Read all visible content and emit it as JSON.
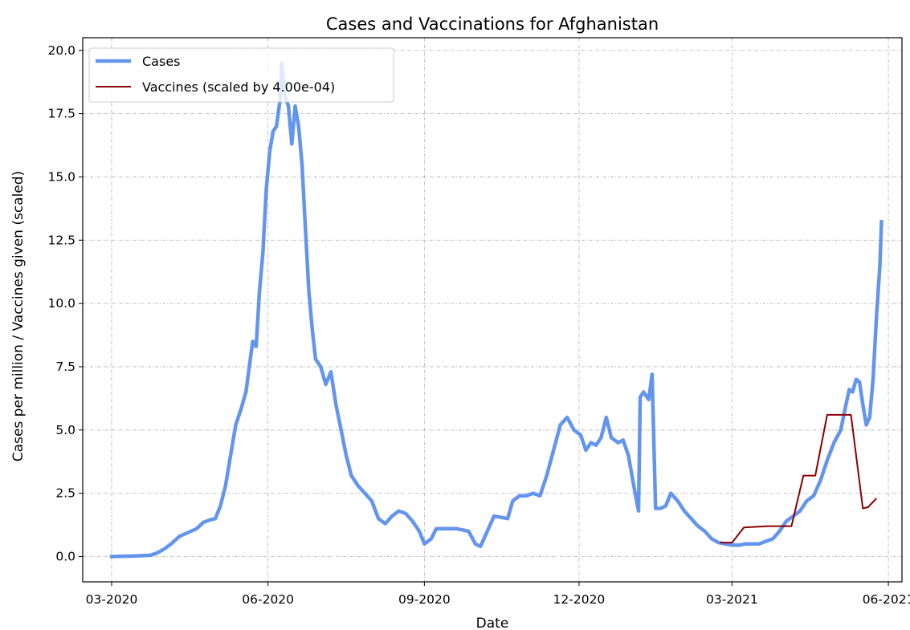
{
  "chart_data": {
    "type": "line",
    "title": "Cases and Vaccinations for Afghanistan",
    "xlabel": "Date",
    "ylabel": "Cases per million / Vaccines given (scaled)",
    "x_axis": "date",
    "xlim": [
      "2020-02-13",
      "2021-06-09"
    ],
    "ylim": [
      -1.0,
      20.5
    ],
    "x_ticks": [
      "2020-03-01",
      "2020-06-01",
      "2020-09-01",
      "2020-12-01",
      "2021-03-01",
      "2021-06-01"
    ],
    "x_tick_labels": [
      "03-2020",
      "06-2020",
      "09-2020",
      "12-2020",
      "03-2021",
      "06-2021"
    ],
    "y_ticks": [
      0.0,
      2.5,
      5.0,
      7.5,
      10.0,
      12.5,
      15.0,
      17.5,
      20.0
    ],
    "y_tick_labels": [
      "0.0",
      "2.5",
      "5.0",
      "7.5",
      "10.0",
      "12.5",
      "15.0",
      "17.5",
      "20.0"
    ],
    "grid": true,
    "legend_position": "top-left",
    "series": [
      {
        "name": "Cases",
        "color": "#6495ed",
        "points": [
          [
            "2020-02-29",
            0.0
          ],
          [
            "2020-03-15",
            0.02
          ],
          [
            "2020-03-24",
            0.05
          ],
          [
            "2020-03-28",
            0.15
          ],
          [
            "2020-04-01",
            0.3
          ],
          [
            "2020-04-05",
            0.5
          ],
          [
            "2020-04-10",
            0.8
          ],
          [
            "2020-04-15",
            0.95
          ],
          [
            "2020-04-20",
            1.1
          ],
          [
            "2020-04-24",
            1.35
          ],
          [
            "2020-04-28",
            1.45
          ],
          [
            "2020-05-01",
            1.5
          ],
          [
            "2020-05-04",
            2.0
          ],
          [
            "2020-05-07",
            2.8
          ],
          [
            "2020-05-10",
            4.0
          ],
          [
            "2020-05-13",
            5.2
          ],
          [
            "2020-05-16",
            5.8
          ],
          [
            "2020-05-19",
            6.5
          ],
          [
            "2020-05-21",
            7.5
          ],
          [
            "2020-05-23",
            8.5
          ],
          [
            "2020-05-25",
            8.3
          ],
          [
            "2020-05-27",
            10.5
          ],
          [
            "2020-05-29",
            12.0
          ],
          [
            "2020-05-31",
            14.5
          ],
          [
            "2020-06-02",
            16.0
          ],
          [
            "2020-06-04",
            16.8
          ],
          [
            "2020-06-06",
            17.0
          ],
          [
            "2020-06-08",
            18.0
          ],
          [
            "2020-06-09",
            19.5
          ],
          [
            "2020-06-11",
            18.2
          ],
          [
            "2020-06-13",
            17.8
          ],
          [
            "2020-06-15",
            16.3
          ],
          [
            "2020-06-17",
            17.8
          ],
          [
            "2020-06-19",
            17.0
          ],
          [
            "2020-06-21",
            15.5
          ],
          [
            "2020-06-23",
            13.0
          ],
          [
            "2020-06-25",
            10.5
          ],
          [
            "2020-06-27",
            9.0
          ],
          [
            "2020-06-29",
            7.8
          ],
          [
            "2020-07-02",
            7.5
          ],
          [
            "2020-07-05",
            6.8
          ],
          [
            "2020-07-08",
            7.3
          ],
          [
            "2020-07-11",
            6.0
          ],
          [
            "2020-07-14",
            5.0
          ],
          [
            "2020-07-17",
            4.0
          ],
          [
            "2020-07-20",
            3.2
          ],
          [
            "2020-07-24",
            2.8
          ],
          [
            "2020-07-28",
            2.5
          ],
          [
            "2020-08-01",
            2.2
          ],
          [
            "2020-08-05",
            1.5
          ],
          [
            "2020-08-09",
            1.3
          ],
          [
            "2020-08-13",
            1.6
          ],
          [
            "2020-08-17",
            1.8
          ],
          [
            "2020-08-21",
            1.7
          ],
          [
            "2020-08-25",
            1.4
          ],
          [
            "2020-08-29",
            1.0
          ],
          [
            "2020-09-01",
            0.5
          ],
          [
            "2020-09-05",
            0.7
          ],
          [
            "2020-09-08",
            1.1
          ],
          [
            "2020-09-13",
            1.1
          ],
          [
            "2020-09-20",
            1.1
          ],
          [
            "2020-09-27",
            1.0
          ],
          [
            "2020-10-01",
            0.5
          ],
          [
            "2020-10-04",
            0.4
          ],
          [
            "2020-10-08",
            1.0
          ],
          [
            "2020-10-12",
            1.6
          ],
          [
            "2020-10-16",
            1.55
          ],
          [
            "2020-10-20",
            1.5
          ],
          [
            "2020-10-23",
            2.2
          ],
          [
            "2020-10-27",
            2.4
          ],
          [
            "2020-10-31",
            2.4
          ],
          [
            "2020-11-04",
            2.5
          ],
          [
            "2020-11-08",
            2.4
          ],
          [
            "2020-11-12",
            3.2
          ],
          [
            "2020-11-16",
            4.2
          ],
          [
            "2020-11-20",
            5.2
          ],
          [
            "2020-11-24",
            5.5
          ],
          [
            "2020-11-28",
            5.0
          ],
          [
            "2020-12-02",
            4.8
          ],
          [
            "2020-12-05",
            4.2
          ],
          [
            "2020-12-08",
            4.5
          ],
          [
            "2020-12-11",
            4.4
          ],
          [
            "2020-12-14",
            4.7
          ],
          [
            "2020-12-17",
            5.5
          ],
          [
            "2020-12-20",
            4.7
          ],
          [
            "2020-12-24",
            4.5
          ],
          [
            "2020-12-27",
            4.6
          ],
          [
            "2020-12-30",
            4.0
          ],
          [
            "2021-01-03",
            2.5
          ],
          [
            "2021-01-05",
            1.8
          ],
          [
            "2021-01-06",
            6.3
          ],
          [
            "2021-01-08",
            6.5
          ],
          [
            "2021-01-11",
            6.2
          ],
          [
            "2021-01-13",
            7.2
          ],
          [
            "2021-01-15",
            1.9
          ],
          [
            "2021-01-18",
            1.9
          ],
          [
            "2021-01-21",
            2.0
          ],
          [
            "2021-01-24",
            2.5
          ],
          [
            "2021-01-28",
            2.2
          ],
          [
            "2021-02-01",
            1.8
          ],
          [
            "2021-02-05",
            1.5
          ],
          [
            "2021-02-09",
            1.2
          ],
          [
            "2021-02-13",
            1.0
          ],
          [
            "2021-02-17",
            0.7
          ],
          [
            "2021-02-21",
            0.55
          ],
          [
            "2021-02-25",
            0.5
          ],
          [
            "2021-03-01",
            0.45
          ],
          [
            "2021-03-05",
            0.45
          ],
          [
            "2021-03-09",
            0.5
          ],
          [
            "2021-03-13",
            0.5
          ],
          [
            "2021-03-17",
            0.5
          ],
          [
            "2021-03-21",
            0.6
          ],
          [
            "2021-03-25",
            0.7
          ],
          [
            "2021-03-29",
            1.0
          ],
          [
            "2021-04-02",
            1.4
          ],
          [
            "2021-04-06",
            1.6
          ],
          [
            "2021-04-10",
            1.8
          ],
          [
            "2021-04-14",
            2.2
          ],
          [
            "2021-04-18",
            2.4
          ],
          [
            "2021-04-22",
            3.0
          ],
          [
            "2021-04-26",
            3.8
          ],
          [
            "2021-04-30",
            4.5
          ],
          [
            "2021-05-04",
            5.0
          ],
          [
            "2021-05-07",
            6.0
          ],
          [
            "2021-05-09",
            6.6
          ],
          [
            "2021-05-11",
            6.5
          ],
          [
            "2021-05-13",
            7.0
          ],
          [
            "2021-05-15",
            6.9
          ],
          [
            "2021-05-17",
            6.0
          ],
          [
            "2021-05-19",
            5.2
          ],
          [
            "2021-05-21",
            5.5
          ],
          [
            "2021-05-23",
            7.0
          ],
          [
            "2021-05-25",
            9.5
          ],
          [
            "2021-05-27",
            11.5
          ],
          [
            "2021-05-28",
            13.3
          ]
        ]
      },
      {
        "name": "Vaccines (scaled by 4.00e-04)",
        "color": "#8b0000",
        "points": [
          [
            "2021-02-22",
            0.55
          ],
          [
            "2021-03-01",
            0.55
          ],
          [
            "2021-03-08",
            1.15
          ],
          [
            "2021-03-22",
            1.2
          ],
          [
            "2021-04-05",
            1.2
          ],
          [
            "2021-04-12",
            3.2
          ],
          [
            "2021-04-19",
            3.2
          ],
          [
            "2021-04-26",
            5.6
          ],
          [
            "2021-05-10",
            5.6
          ],
          [
            "2021-05-17",
            1.9
          ],
          [
            "2021-05-20",
            1.95
          ],
          [
            "2021-05-25",
            2.3
          ]
        ]
      }
    ]
  }
}
